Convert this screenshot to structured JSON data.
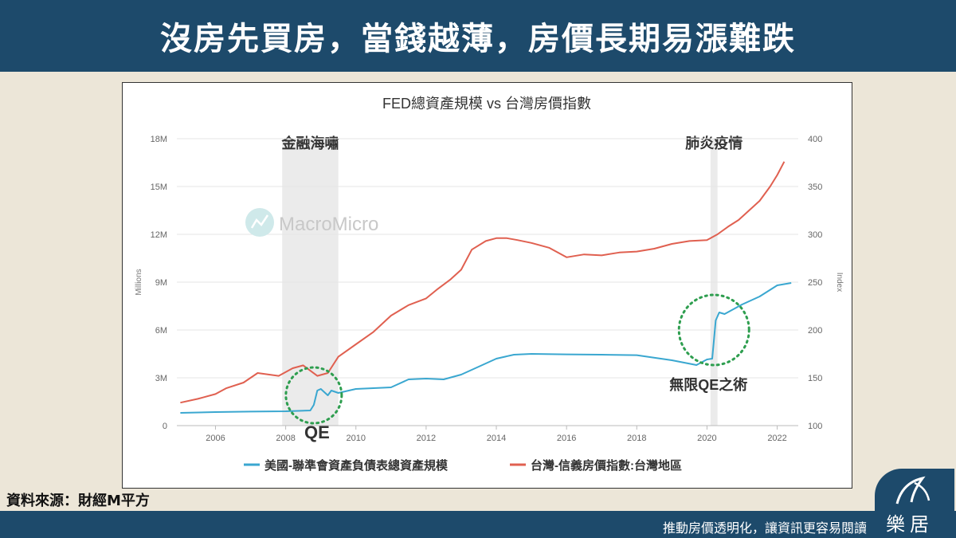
{
  "header": {
    "title": "沒房先買房，當錢越薄，房價長期易漲難跌"
  },
  "source_label": "資料來源：財經M平方",
  "footer": {
    "tagline": "推動房價透明化，讓資訊更容易閱讀"
  },
  "logo": {
    "text": "樂居"
  },
  "chart_data": {
    "type": "line",
    "title": "FED總資產規模 vs 台灣房價指數",
    "watermark": "MacroMicro",
    "ylabel_left": "Millions",
    "ylabel_right": "Index",
    "y_left_ticks": [
      "0",
      "3M",
      "6M",
      "9M",
      "12M",
      "15M",
      "18M"
    ],
    "y_left_range": [
      0,
      18
    ],
    "y_right_ticks": [
      "100",
      "150",
      "200",
      "250",
      "300",
      "350",
      "400"
    ],
    "y_right_range": [
      100,
      400
    ],
    "x_ticks": [
      "2006",
      "2008",
      "2010",
      "2012",
      "2014",
      "2016",
      "2018",
      "2020",
      "2022"
    ],
    "x_range": [
      2004.9,
      2022.6
    ],
    "grid": true,
    "legend_position": "bottom",
    "series": [
      {
        "name": "美國-聯準會資產負債表總資產規模",
        "color": "#3aa7d0",
        "axis": "left",
        "x": [
          2005.0,
          2006.0,
          2007.0,
          2008.0,
          2008.7,
          2008.8,
          2008.9,
          2009.0,
          2009.2,
          2009.3,
          2009.5,
          2010.0,
          2010.5,
          2011.0,
          2011.5,
          2012.0,
          2012.5,
          2013.0,
          2013.5,
          2014.0,
          2014.5,
          2015.0,
          2016.0,
          2017.0,
          2018.0,
          2019.0,
          2019.7,
          2020.0,
          2020.15,
          2020.25,
          2020.35,
          2020.5,
          2021.0,
          2021.5,
          2022.0,
          2022.4
        ],
        "values": [
          0.8,
          0.85,
          0.88,
          0.9,
          0.95,
          1.3,
          2.2,
          2.3,
          1.9,
          2.2,
          2.05,
          2.3,
          2.35,
          2.4,
          2.9,
          2.95,
          2.9,
          3.2,
          3.7,
          4.2,
          4.45,
          4.5,
          4.47,
          4.45,
          4.42,
          4.1,
          3.8,
          4.15,
          4.2,
          6.6,
          7.1,
          7.0,
          7.6,
          8.1,
          8.8,
          8.95
        ]
      },
      {
        "name": "台灣-信義房價指數:台灣地區",
        "color": "#e06050",
        "axis": "right",
        "x": [
          2005.0,
          2005.5,
          2006.0,
          2006.3,
          2006.8,
          2007.2,
          2007.8,
          2008.2,
          2008.5,
          2008.9,
          2009.2,
          2009.5,
          2010.0,
          2010.5,
          2011.0,
          2011.5,
          2012.0,
          2012.3,
          2012.7,
          2013.0,
          2013.3,
          2013.7,
          2014.0,
          2014.3,
          2014.6,
          2015.0,
          2015.5,
          2016.0,
          2016.5,
          2017.0,
          2017.5,
          2018.0,
          2018.5,
          2019.0,
          2019.5,
          2020.0,
          2020.3,
          2020.6,
          2020.9,
          2021.2,
          2021.5,
          2021.8,
          2022.0,
          2022.2
        ],
        "values": [
          124,
          128,
          133,
          139,
          145,
          155,
          152,
          160,
          163,
          152,
          155,
          172,
          185,
          198,
          215,
          226,
          233,
          242,
          253,
          263,
          284,
          293,
          296,
          296,
          294,
          291,
          286,
          276,
          279,
          278,
          281,
          282,
          285,
          290,
          293,
          294,
          300,
          308,
          315,
          325,
          335,
          350,
          362,
          376
        ]
      }
    ],
    "highlight_bands": [
      {
        "label": "金融海嘯",
        "from": 2007.9,
        "to": 2009.5
      },
      {
        "label": "肺炎疫情",
        "from": 2020.1,
        "to": 2020.3
      }
    ],
    "annotations": [
      {
        "label": "QE",
        "cx": 2008.8,
        "cy": 1.9
      },
      {
        "label": "無限QE之術",
        "cx": 2020.2,
        "cy": 6.0
      }
    ]
  }
}
